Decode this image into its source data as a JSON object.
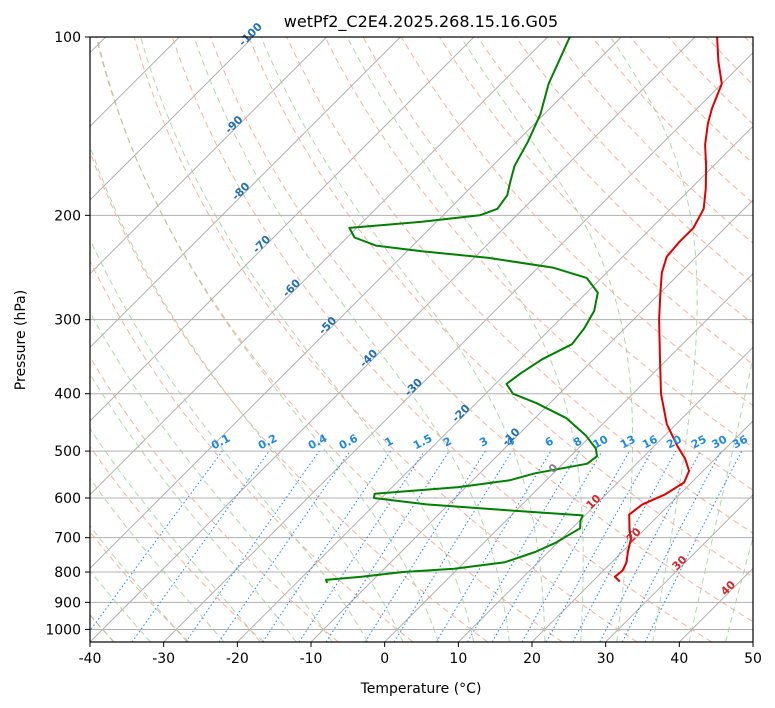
{
  "chart_data": {
    "type": "skew-t",
    "title": "wetPf2_C2E4.2025.268.15.16.G05",
    "xlabel": "Temperature (°C)",
    "ylabel": "Pressure (hPa)",
    "xlim": [
      -40,
      50
    ],
    "ylim": [
      1050,
      100
    ],
    "x_ticks": [
      "-40",
      "-30",
      "-20",
      "-10",
      "0",
      "10",
      "20",
      "30",
      "40",
      "50"
    ],
    "y_ticks": [
      "100",
      "200",
      "300",
      "400",
      "500",
      "600",
      "700",
      "800",
      "900",
      "1000"
    ],
    "x_tick_values": [
      -40,
      -30,
      -20,
      -10,
      0,
      10,
      20,
      30,
      40,
      50
    ],
    "y_tick_values": [
      100,
      200,
      300,
      400,
      500,
      600,
      700,
      800,
      900,
      1000
    ],
    "grid": true,
    "series": [
      {
        "name": "temperature",
        "color": "#e00000",
        "points": [
          [
            830,
            23.7
          ],
          [
            815,
            22.4
          ],
          [
            795,
            22.6
          ],
          [
            770,
            22.0
          ],
          [
            740,
            20.8
          ],
          [
            705,
            19.5
          ],
          [
            675,
            17.8
          ],
          [
            640,
            15.9
          ],
          [
            615,
            16.3
          ],
          [
            592,
            18.0
          ],
          [
            565,
            19.0
          ],
          [
            540,
            18.1
          ],
          [
            515,
            15.9
          ],
          [
            490,
            13.1
          ],
          [
            450,
            8.7
          ],
          [
            400,
            3.8
          ],
          [
            350,
            -1.0
          ],
          [
            300,
            -6.5
          ],
          [
            270,
            -10.0
          ],
          [
            250,
            -12.5
          ],
          [
            235,
            -14.0
          ],
          [
            222,
            -14.3
          ],
          [
            210,
            -14.3
          ],
          [
            195,
            -15.5
          ],
          [
            180,
            -18.0
          ],
          [
            165,
            -21.0
          ],
          [
            152,
            -24.0
          ],
          [
            140,
            -26.5
          ],
          [
            132,
            -28.0
          ],
          [
            120,
            -30.0
          ],
          [
            110,
            -33.5
          ],
          [
            100,
            -37.0
          ]
        ]
      },
      {
        "name": "dewpoint",
        "color": "#008000",
        "points": [
          [
            835,
            -15.8
          ],
          [
            825,
            -16.4
          ],
          [
            815,
            -12.0
          ],
          [
            800,
            -7.0
          ],
          [
            790,
            -0.5
          ],
          [
            770,
            5.5
          ],
          [
            740,
            8.2
          ],
          [
            715,
            9.7
          ],
          [
            700,
            10.2
          ],
          [
            675,
            11.1
          ],
          [
            655,
            10.1
          ],
          [
            642,
            9.7
          ],
          [
            630,
            -0.5
          ],
          [
            615,
            -13.0
          ],
          [
            600,
            -21.0
          ],
          [
            590,
            -21.5
          ],
          [
            575,
            -11.0
          ],
          [
            560,
            -5.0
          ],
          [
            545,
            -2.5
          ],
          [
            525,
            3.3
          ],
          [
            510,
            3.6
          ],
          [
            495,
            2.4
          ],
          [
            470,
            -0.8
          ],
          [
            440,
            -5.7
          ],
          [
            415,
            -11.8
          ],
          [
            400,
            -16.3
          ],
          [
            385,
            -18.5
          ],
          [
            370,
            -18.0
          ],
          [
            350,
            -17.0
          ],
          [
            330,
            -15.0
          ],
          [
            310,
            -15.5
          ],
          [
            290,
            -16.5
          ],
          [
            270,
            -18.5
          ],
          [
            255,
            -22.0
          ],
          [
            245,
            -28.0
          ],
          [
            236,
            -38.0
          ],
          [
            230,
            -48.0
          ],
          [
            225,
            -55.0
          ],
          [
            218,
            -59.0
          ],
          [
            210,
            -61.0
          ],
          [
            205,
            -52.0
          ],
          [
            200,
            -45.0
          ],
          [
            195,
            -43.5
          ],
          [
            185,
            -44.0
          ],
          [
            175,
            -45.5
          ],
          [
            165,
            -47.0
          ],
          [
            150,
            -48.5
          ],
          [
            135,
            -50.5
          ],
          [
            120,
            -53.5
          ],
          [
            100,
            -57.0
          ]
        ]
      }
    ],
    "dry_adiabat_labels": [
      "-100",
      "-90",
      "-80",
      "-70",
      "-60",
      "-50",
      "-40",
      "-30",
      "-20",
      "-10"
    ],
    "dry_adiabat_values": [
      -100,
      -90,
      -80,
      -70,
      -60,
      -50,
      -40,
      -30,
      -20,
      -10
    ],
    "moist_adiabat_labels": [
      "0",
      "10",
      "20",
      "30",
      "40"
    ],
    "moist_adiabat_values": [
      0,
      10,
      20,
      30,
      40
    ],
    "mixing_ratio_labels": [
      "0.1",
      "0.2",
      "0.4",
      "0.6",
      "1",
      "1.5",
      "2",
      "3",
      "4",
      "6",
      "8",
      "10",
      "13",
      "16",
      "20",
      "25",
      "30",
      "36"
    ],
    "mixing_ratio_values": [
      0.1,
      0.2,
      0.4,
      0.6,
      1,
      1.5,
      2,
      3,
      4,
      6,
      8,
      10,
      13,
      16,
      20,
      25,
      30,
      36
    ]
  }
}
